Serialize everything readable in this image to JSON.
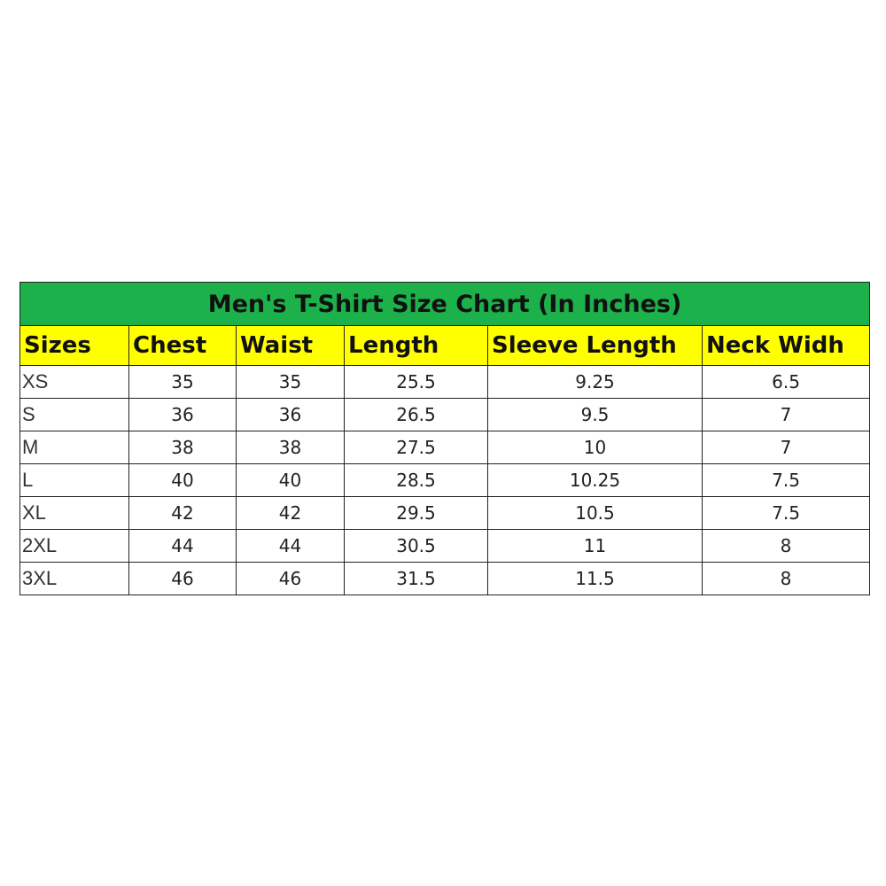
{
  "title": "Men's T-Shirt Size Chart (In Inches)",
  "colors": {
    "title_bg": "#1db14b",
    "header_bg": "#ffff00"
  },
  "headers": [
    "Sizes",
    "Chest",
    "Waist",
    "Length",
    "Sleeve Length",
    "Neck Widh"
  ],
  "rows": [
    [
      "XS",
      "35",
      "35",
      "25.5",
      "9.25",
      "6.5"
    ],
    [
      "S",
      "36",
      "36",
      "26.5",
      "9.5",
      "7"
    ],
    [
      "M",
      "38",
      "38",
      "27.5",
      "10",
      "7"
    ],
    [
      "L",
      "40",
      "40",
      "28.5",
      "10.25",
      "7.5"
    ],
    [
      "XL",
      "42",
      "42",
      "29.5",
      "10.5",
      "7.5"
    ],
    [
      "2XL",
      "44",
      "44",
      "30.5",
      "11",
      "8"
    ],
    [
      "3XL",
      "46",
      "46",
      "31.5",
      "11.5",
      "8"
    ]
  ]
}
